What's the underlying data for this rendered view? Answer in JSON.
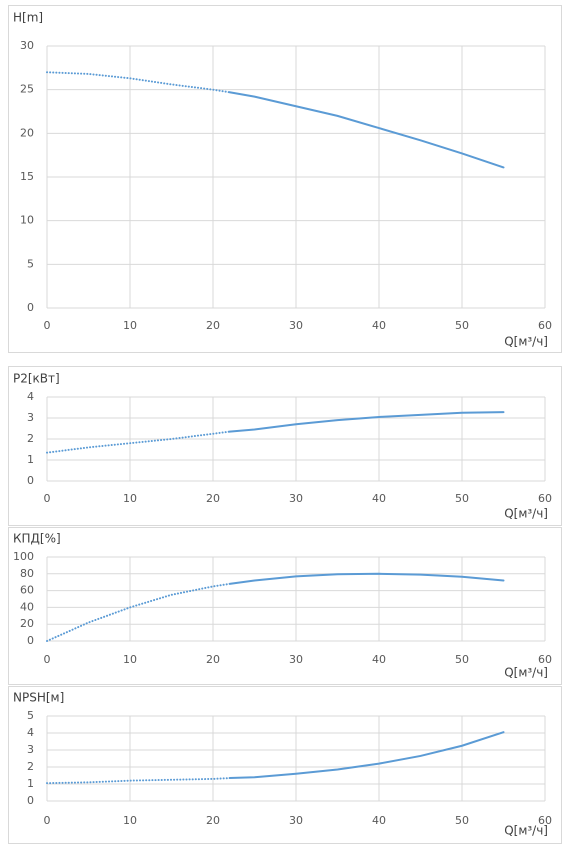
{
  "chart_data": [
    {
      "type": "line",
      "y_label": "H[m]",
      "x_label": "Q[м³/ч]",
      "x": [
        0,
        5,
        10,
        15,
        20,
        22,
        25,
        30,
        35,
        40,
        45,
        50,
        55
      ],
      "series": [
        {
          "color": "#5b9bd5",
          "style": "dotted",
          "values": [
            27,
            26.8,
            26.3,
            25.6,
            25,
            24.7,
            null,
            null,
            null,
            null,
            null,
            null,
            null
          ]
        },
        {
          "color": "#5b9bd5",
          "style": "solid",
          "values": [
            null,
            null,
            null,
            null,
            null,
            24.7,
            24.2,
            23.1,
            22,
            20.6,
            19.2,
            17.7,
            16.1
          ]
        }
      ],
      "xlim": [
        0,
        60
      ],
      "xticks": [
        0,
        10,
        20,
        30,
        40,
        50,
        60
      ],
      "ylim": [
        0,
        30
      ],
      "yticks": [
        0,
        5,
        10,
        15,
        20,
        25,
        30
      ],
      "grid": true
    },
    {
      "type": "line",
      "y_label": "P2[кВт]",
      "x_label": "Q[м³/ч]",
      "x": [
        0,
        5,
        10,
        15,
        20,
        22,
        25,
        30,
        35,
        40,
        45,
        50,
        55
      ],
      "series": [
        {
          "color": "#5b9bd5",
          "style": "dotted",
          "values": [
            1.35,
            1.6,
            1.8,
            2.0,
            2.25,
            2.35,
            null,
            null,
            null,
            null,
            null,
            null,
            null
          ]
        },
        {
          "color": "#5b9bd5",
          "style": "solid",
          "values": [
            null,
            null,
            null,
            null,
            null,
            2.35,
            2.45,
            2.7,
            2.9,
            3.05,
            3.15,
            3.25,
            3.28
          ]
        }
      ],
      "xlim": [
        0,
        60
      ],
      "xticks": [
        0,
        10,
        20,
        30,
        40,
        50,
        60
      ],
      "ylim": [
        0,
        4
      ],
      "yticks": [
        0,
        1,
        2,
        3,
        4
      ],
      "grid": true
    },
    {
      "type": "line",
      "y_label": "КПД[%]",
      "x_label": "Q[м³/ч]",
      "x": [
        0,
        5,
        10,
        15,
        20,
        22,
        25,
        30,
        35,
        40,
        45,
        50,
        55
      ],
      "series": [
        {
          "color": "#5b9bd5",
          "style": "dotted",
          "values": [
            0,
            22,
            40,
            55,
            65,
            68,
            null,
            null,
            null,
            null,
            null,
            null,
            null
          ]
        },
        {
          "color": "#5b9bd5",
          "style": "solid",
          "values": [
            null,
            null,
            null,
            null,
            null,
            68,
            72,
            77,
            79.5,
            80,
            79,
            76.5,
            72
          ]
        }
      ],
      "xlim": [
        0,
        60
      ],
      "xticks": [
        0,
        10,
        20,
        30,
        40,
        50,
        60
      ],
      "ylim": [
        0,
        100
      ],
      "yticks": [
        0,
        20,
        40,
        60,
        80,
        100
      ],
      "grid": true
    },
    {
      "type": "line",
      "y_label": "NPSH[м]",
      "x_label": "Q[м³/ч]",
      "x": [
        0,
        5,
        10,
        15,
        20,
        22,
        25,
        30,
        35,
        40,
        45,
        50,
        55
      ],
      "series": [
        {
          "color": "#5b9bd5",
          "style": "dotted",
          "values": [
            1.05,
            1.1,
            1.2,
            1.25,
            1.3,
            1.35,
            null,
            null,
            null,
            null,
            null,
            null,
            null
          ]
        },
        {
          "color": "#5b9bd5",
          "style": "solid",
          "values": [
            null,
            null,
            null,
            null,
            null,
            1.35,
            1.4,
            1.6,
            1.85,
            2.2,
            2.65,
            3.25,
            4.05
          ]
        }
      ],
      "xlim": [
        0,
        60
      ],
      "xticks": [
        0,
        10,
        20,
        30,
        40,
        50,
        60
      ],
      "ylim": [
        0,
        5
      ],
      "yticks": [
        0,
        1,
        2,
        3,
        4,
        5
      ],
      "grid": true
    }
  ]
}
